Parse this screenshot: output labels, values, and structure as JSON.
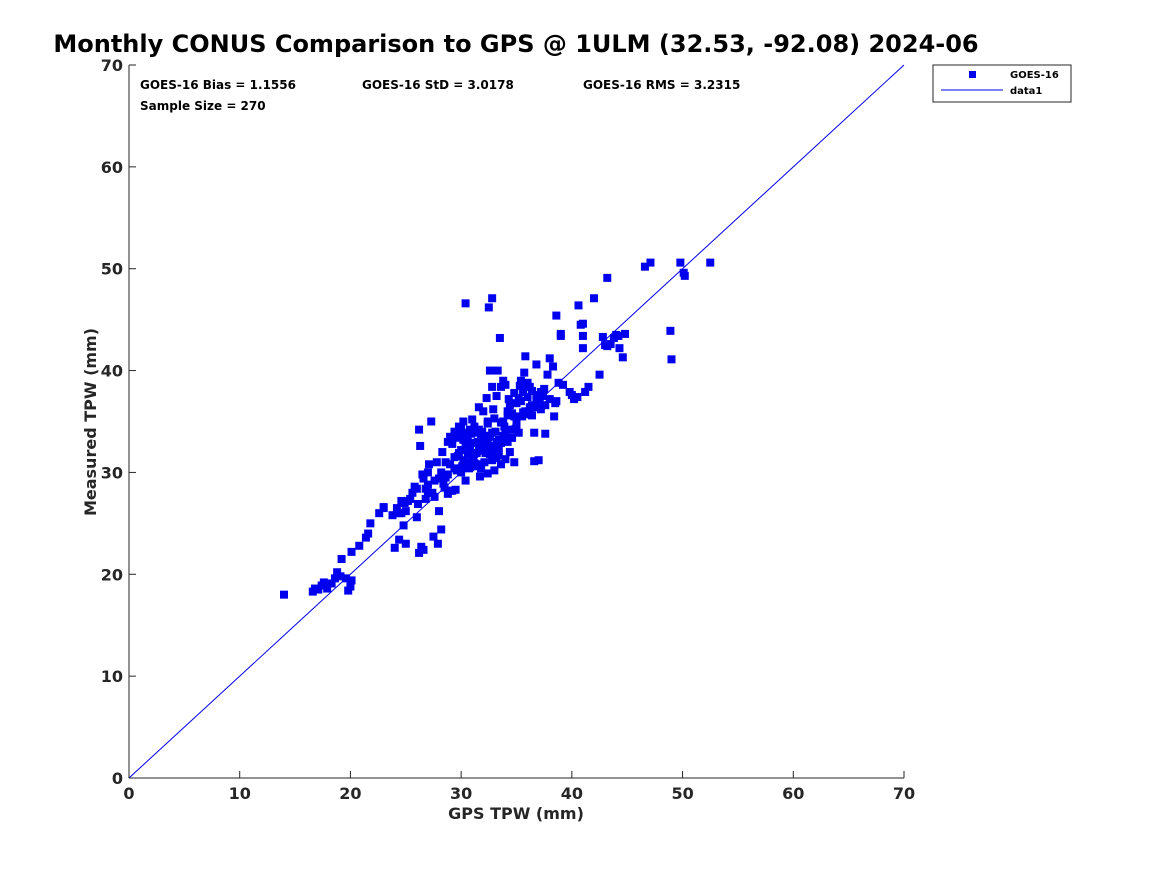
{
  "chart_data": {
    "type": "scatter",
    "title": "Monthly CONUS Comparison to GPS @ 1ULM (32.53, -92.08) 2024-06",
    "xlabel": "GPS TPW (mm)",
    "ylabel": "Measured TPW (mm)",
    "xlim": [
      0,
      70
    ],
    "ylim": [
      0,
      70
    ],
    "xticks": [
      "0",
      "10",
      "20",
      "30",
      "40",
      "50",
      "60",
      "70"
    ],
    "yticks": [
      "0",
      "10",
      "20",
      "30",
      "40",
      "50",
      "60",
      "70"
    ],
    "grid": false,
    "legend_position": "outside-top-right",
    "stats": {
      "bias": "GOES-16 Bias = 1.1556",
      "std": "GOES-16 StD = 3.0178",
      "rms": "GOES-16 RMS = 3.2315",
      "sample": "Sample Size = 270"
    },
    "series": [
      {
        "name": "GOES-16",
        "kind": "scatter",
        "marker": "square",
        "color": "#0000ee",
        "points": [
          [
            14.0,
            18.0
          ],
          [
            16.6,
            18.3
          ],
          [
            16.8,
            18.6
          ],
          [
            17.1,
            18.5
          ],
          [
            17.4,
            18.9
          ],
          [
            17.6,
            19.2
          ],
          [
            17.9,
            18.6
          ],
          [
            18.3,
            19.1
          ],
          [
            18.6,
            19.6
          ],
          [
            18.8,
            20.2
          ],
          [
            19.1,
            19.8
          ],
          [
            19.2,
            21.5
          ],
          [
            19.6,
            19.6
          ],
          [
            19.8,
            18.4
          ],
          [
            20.0,
            18.8
          ],
          [
            20.1,
            19.4
          ],
          [
            20.1,
            22.2
          ],
          [
            20.8,
            22.8
          ],
          [
            21.4,
            23.6
          ],
          [
            21.6,
            24.0
          ],
          [
            21.8,
            25.0
          ],
          [
            22.6,
            26.0
          ],
          [
            23.0,
            26.5
          ],
          [
            24.0,
            22.6
          ],
          [
            24.2,
            26.5
          ],
          [
            24.4,
            23.4
          ],
          [
            24.6,
            26.0
          ],
          [
            24.8,
            24.8
          ],
          [
            25.0,
            23.0
          ],
          [
            24.9,
            27.0
          ],
          [
            25.2,
            27.2
          ],
          [
            25.6,
            28.0
          ],
          [
            25.8,
            28.6
          ],
          [
            26.1,
            26.9
          ],
          [
            26.2,
            22.1
          ],
          [
            26.4,
            22.7
          ],
          [
            26.6,
            22.4
          ],
          [
            26.5,
            29.8
          ],
          [
            26.8,
            28.4
          ],
          [
            27.0,
            28.8
          ],
          [
            27.1,
            30.8
          ],
          [
            27.3,
            35.0
          ],
          [
            27.5,
            23.7
          ],
          [
            27.6,
            27.6
          ],
          [
            27.9,
            23.0
          ],
          [
            28.0,
            29.4
          ],
          [
            28.2,
            24.4
          ],
          [
            28.3,
            32.0
          ],
          [
            28.5,
            28.5
          ],
          [
            28.6,
            31.0
          ],
          [
            28.8,
            29.8
          ],
          [
            29.0,
            33.5
          ],
          [
            29.2,
            28.2
          ],
          [
            29.4,
            30.4
          ],
          [
            29.5,
            28.3
          ],
          [
            29.7,
            31.6
          ],
          [
            29.8,
            34.5
          ],
          [
            30.0,
            32.2
          ],
          [
            30.1,
            30.6
          ],
          [
            30.2,
            33.2
          ],
          [
            30.4,
            29.2
          ],
          [
            30.5,
            31.0
          ],
          [
            30.6,
            32.6
          ],
          [
            30.7,
            30.4
          ],
          [
            30.9,
            33.8
          ],
          [
            31.0,
            35.2
          ],
          [
            31.1,
            31.5
          ],
          [
            31.3,
            30.6
          ],
          [
            31.5,
            33.0
          ],
          [
            31.6,
            36.4
          ],
          [
            31.7,
            29.6
          ],
          [
            31.9,
            34.0
          ],
          [
            32.0,
            32.2
          ],
          [
            32.1,
            31.0
          ],
          [
            32.2,
            33.6
          ],
          [
            32.3,
            37.3
          ],
          [
            32.4,
            35.0
          ],
          [
            32.5,
            46.2
          ],
          [
            32.6,
            31.8
          ],
          [
            32.7,
            32.6
          ],
          [
            32.8,
            38.4
          ],
          [
            32.9,
            36.2
          ],
          [
            33.0,
            30.2
          ],
          [
            33.1,
            34.0
          ],
          [
            33.2,
            31.4
          ],
          [
            33.3,
            40.0
          ],
          [
            33.4,
            33.2
          ],
          [
            33.5,
            43.2
          ],
          [
            33.6,
            30.8
          ],
          [
            33.8,
            39.0
          ],
          [
            33.9,
            34.5
          ],
          [
            34.0,
            31.3
          ],
          [
            34.2,
            36.0
          ],
          [
            34.3,
            37.2
          ],
          [
            34.5,
            33.4
          ],
          [
            34.6,
            35.8
          ],
          [
            34.8,
            31.0
          ],
          [
            35.0,
            36.8
          ],
          [
            35.2,
            33.9
          ],
          [
            35.3,
            38.5
          ],
          [
            35.5,
            35.5
          ],
          [
            35.7,
            39.8
          ],
          [
            35.8,
            41.4
          ],
          [
            36.0,
            37.4
          ],
          [
            36.2,
            36.0
          ],
          [
            36.4,
            35.6
          ],
          [
            36.6,
            31.1
          ],
          [
            36.8,
            40.6
          ],
          [
            37.0,
            31.2
          ],
          [
            37.1,
            36.9
          ],
          [
            37.4,
            37.5
          ],
          [
            37.6,
            33.8
          ],
          [
            37.8,
            39.6
          ],
          [
            38.0,
            41.2
          ],
          [
            38.3,
            40.4
          ],
          [
            38.5,
            36.8
          ],
          [
            38.6,
            45.4
          ],
          [
            38.8,
            38.8
          ],
          [
            39.0,
            43.6
          ],
          [
            39.2,
            38.6
          ],
          [
            39.8,
            37.9
          ],
          [
            40.2,
            37.2
          ],
          [
            40.5,
            37.4
          ],
          [
            40.6,
            46.4
          ],
          [
            40.8,
            44.5
          ],
          [
            41.0,
            42.2
          ],
          [
            41.2,
            37.9
          ],
          [
            41.5,
            38.4
          ],
          [
            42.0,
            47.1
          ],
          [
            42.5,
            39.6
          ],
          [
            42.8,
            43.3
          ],
          [
            43.0,
            42.5
          ],
          [
            43.2,
            49.1
          ],
          [
            43.5,
            42.6
          ],
          [
            43.8,
            43.2
          ],
          [
            44.0,
            43.5
          ],
          [
            44.3,
            42.2
          ],
          [
            44.6,
            41.3
          ],
          [
            44.8,
            43.6
          ],
          [
            46.6,
            50.2
          ],
          [
            47.1,
            50.6
          ],
          [
            48.9,
            43.9
          ],
          [
            49.0,
            41.1
          ],
          [
            49.8,
            50.6
          ],
          [
            50.1,
            49.6
          ],
          [
            50.2,
            49.3
          ],
          [
            52.5,
            50.6
          ],
          [
            30.4,
            46.6
          ],
          [
            32.8,
            47.1
          ],
          [
            27.4,
            28.0
          ],
          [
            28.0,
            26.2
          ],
          [
            26.3,
            32.6
          ],
          [
            26.2,
            34.2
          ],
          [
            29.0,
            28.2
          ],
          [
            29.4,
            34.0
          ],
          [
            30.0,
            34.4
          ],
          [
            30.8,
            32.3
          ],
          [
            31.2,
            34.5
          ],
          [
            31.8,
            30.8
          ],
          [
            32.0,
            36.0
          ],
          [
            32.6,
            33.5
          ],
          [
            33.0,
            35.3
          ],
          [
            33.6,
            38.4
          ],
          [
            34.0,
            38.6
          ],
          [
            34.4,
            32.0
          ],
          [
            34.8,
            35.5
          ],
          [
            35.0,
            34.5
          ],
          [
            35.4,
            37.0
          ],
          [
            35.6,
            37.9
          ],
          [
            36.0,
            38.8
          ],
          [
            36.4,
            38.0
          ],
          [
            36.6,
            36.4
          ],
          [
            37.0,
            36.5
          ],
          [
            37.5,
            38.2
          ],
          [
            38.0,
            37.2
          ],
          [
            38.4,
            35.5
          ],
          [
            39.0,
            43.4
          ],
          [
            41.0,
            43.4
          ],
          [
            41.0,
            44.6
          ],
          [
            25.0,
            26.2
          ],
          [
            24.4,
            26.0
          ],
          [
            23.8,
            25.8
          ],
          [
            26.0,
            28.4
          ],
          [
            27.0,
            30.0
          ],
          [
            27.8,
            31.0
          ],
          [
            28.6,
            29.5
          ],
          [
            29.2,
            32.8
          ],
          [
            29.6,
            33.4
          ],
          [
            30.2,
            35.0
          ],
          [
            30.6,
            33.5
          ],
          [
            31.4,
            33.9
          ],
          [
            32.2,
            31.9
          ],
          [
            32.4,
            29.9
          ],
          [
            32.8,
            31.2
          ],
          [
            33.2,
            33.0
          ],
          [
            33.4,
            32.4
          ],
          [
            33.8,
            33.6
          ],
          [
            34.2,
            35.6
          ],
          [
            34.6,
            34.2
          ],
          [
            35.2,
            37.3
          ],
          [
            36.2,
            38.4
          ],
          [
            36.8,
            37.2
          ],
          [
            37.2,
            36.2
          ],
          [
            29.0,
            30.8
          ],
          [
            28.4,
            28.9
          ],
          [
            27.6,
            29.2
          ],
          [
            26.8,
            27.4
          ],
          [
            25.4,
            27.4
          ],
          [
            24.6,
            27.2
          ],
          [
            23.0,
            26.6
          ],
          [
            29.8,
            31.9
          ],
          [
            30.4,
            32.8
          ],
          [
            30.8,
            30.5
          ],
          [
            31.4,
            31.9
          ],
          [
            31.0,
            32.9
          ],
          [
            31.6,
            34.2
          ],
          [
            32.0,
            33.0
          ],
          [
            33.0,
            32.2
          ],
          [
            34.0,
            34.0
          ],
          [
            35.0,
            35.2
          ],
          [
            35.8,
            36.0
          ],
          [
            36.0,
            35.7
          ],
          [
            36.6,
            33.9
          ],
          [
            30.2,
            31.2
          ],
          [
            29.6,
            30.2
          ],
          [
            28.8,
            27.9
          ],
          [
            30.6,
            31.8
          ],
          [
            31.2,
            30.9
          ],
          [
            32.4,
            34.8
          ],
          [
            33.6,
            34.9
          ],
          [
            34.4,
            36.6
          ],
          [
            35.6,
            38.2
          ],
          [
            36.8,
            37.6
          ],
          [
            37.6,
            36.6
          ],
          [
            40.0,
            37.6
          ],
          [
            43.2,
            42.4
          ],
          [
            44.2,
            43.4
          ],
          [
            32.6,
            40.0
          ],
          [
            33.2,
            37.5
          ],
          [
            31.8,
            33.5
          ],
          [
            29.4,
            31.5
          ],
          [
            30.0,
            30.0
          ],
          [
            30.8,
            34.2
          ],
          [
            31.6,
            32.5
          ],
          [
            32.2,
            32.8
          ],
          [
            32.8,
            33.9
          ],
          [
            33.8,
            35.0
          ],
          [
            34.8,
            37.8
          ],
          [
            36.2,
            36.4
          ],
          [
            28.2,
            30.0
          ],
          [
            27.0,
            28.0
          ],
          [
            26.0,
            25.6
          ],
          [
            26.6,
            29.4
          ],
          [
            30.4,
            33.9
          ],
          [
            31.0,
            31.3
          ],
          [
            33.4,
            31.7
          ],
          [
            34.2,
            33.0
          ],
          [
            35.4,
            39.0
          ],
          [
            28.8,
            33.0
          ],
          [
            29.8,
            33.7
          ],
          [
            31.8,
            30.4
          ],
          [
            32.4,
            33.2
          ],
          [
            33.6,
            32.9
          ],
          [
            34.6,
            33.4
          ],
          [
            35.6,
            35.9
          ],
          [
            36.4,
            36.6
          ],
          [
            37.2,
            37.9
          ],
          [
            38.6,
            37.0
          ],
          [
            32.9,
            32.0
          ],
          [
            30.9,
            30.9
          ]
        ]
      },
      {
        "name": "data1",
        "kind": "line",
        "color": "#0000ee",
        "points": [
          [
            0,
            0
          ],
          [
            70,
            70
          ]
        ]
      }
    ]
  }
}
